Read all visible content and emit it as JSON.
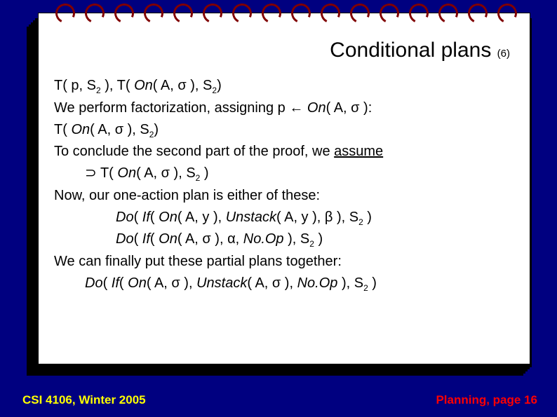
{
  "colors": {
    "background": "#000080",
    "notepad_bg": "#ffffff",
    "spiral": "#800000",
    "text": "#000000",
    "footer_left": "#ffff00",
    "footer_right": "#ff0000"
  },
  "title": {
    "main": "Conditional plans",
    "sub": "(6)",
    "main_fontsize": 30,
    "sub_fontsize": 15
  },
  "lines": {
    "l1a": "T( p, S",
    "l1b": " ),  T( ",
    "l1_on": "On",
    "l1c": "( A, σ ), S",
    "l1d": ")",
    "l2a": "We perform factorization, assigning p ← ",
    "l2_on": "On",
    "l2b": "( A, σ ):",
    "l3a": "T( ",
    "l3_on": "On",
    "l3b": "( A, σ ), S",
    "l3c": ")",
    "l4a": "To conclude the second part of the proof, we ",
    "l4_assume": "assume",
    "l5a": "⊃ T( ",
    "l5_on": "On",
    "l5b": "( A, σ ), S",
    "l5c": " )",
    "l6": "Now, our one-action plan is either of these:",
    "l7_do": "Do",
    "l7a": "( ",
    "l7_if": "If",
    "l7b": "( ",
    "l7_on": "On",
    "l7c": "( A, y ), ",
    "l7_un": "Unstack",
    "l7d": "( A, y ), β ), S",
    "l7e": " )",
    "l8_do": "Do",
    "l8a": "( ",
    "l8_if": "If",
    "l8b": "( ",
    "l8_on": "On",
    "l8c": "( A, σ ), α, ",
    "l8_no": "No.Op",
    "l8d": " ), S",
    "l8e": " )",
    "l9": "We can finally put these partial plans together:",
    "l10_do": "Do",
    "l10a": "( ",
    "l10_if": "If",
    "l10b": "( ",
    "l10_on": "On",
    "l10c": "( A, σ ), ",
    "l10_un": "Unstack",
    "l10d": "( A, σ ), ",
    "l10_no": "No.Op",
    "l10e": " ), S",
    "l10f": " )",
    "sub2": "2"
  },
  "footer": {
    "left": "CSI 4106, Winter 2005",
    "right": "Planning, page 16"
  },
  "typography": {
    "body_fontsize": 20,
    "body_lineheight": 1.55,
    "footer_fontsize": 17,
    "font_family": "Arial"
  }
}
